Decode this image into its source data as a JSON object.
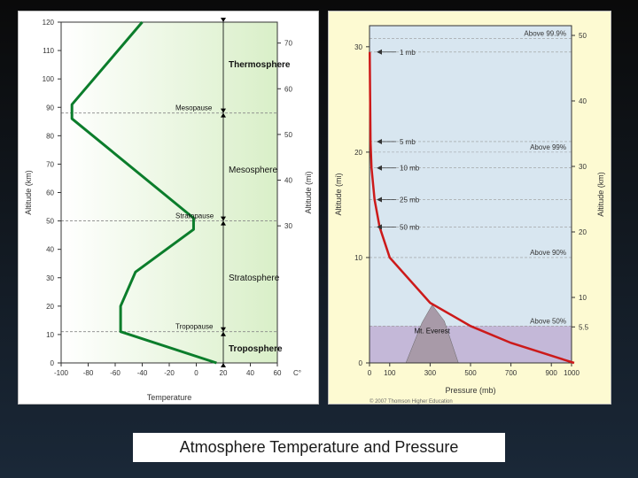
{
  "caption": "Atmosphere Temperature and Pressure",
  "left": {
    "type": "line",
    "x_axis_label": "Temperature",
    "x_unit": "C°",
    "y_axis_label_left": "Altitude (km)",
    "y_axis_label_right": "Altitude (mi)",
    "x_ticks": [
      -100,
      -80,
      -60,
      -40,
      -20,
      0,
      20,
      40,
      60
    ],
    "y_ticks_km": [
      0,
      10,
      20,
      30,
      40,
      50,
      60,
      70,
      80,
      90,
      100,
      110,
      120
    ],
    "y_ticks_mi": [
      30,
      40,
      50,
      60,
      70
    ],
    "temp_profile": [
      {
        "t": 15,
        "alt": 0
      },
      {
        "t": -56,
        "alt": 11
      },
      {
        "t": -56,
        "alt": 20
      },
      {
        "t": -45,
        "alt": 32
      },
      {
        "t": -2,
        "alt": 47
      },
      {
        "t": -2,
        "alt": 51
      },
      {
        "t": -92,
        "alt": 86
      },
      {
        "t": -92,
        "alt": 91
      },
      {
        "t": -40,
        "alt": 120
      }
    ],
    "layers": [
      {
        "name": "Troposphere",
        "y_km": 5,
        "bold": true
      },
      {
        "name": "Stratosphere",
        "y_km": 30,
        "bold": false
      },
      {
        "name": "Mesosphere",
        "y_km": 68,
        "bold": false
      },
      {
        "name": "Thermosphere",
        "y_km": 105,
        "bold": true
      }
    ],
    "pauses": [
      {
        "name": "Tropopause",
        "y_km": 11
      },
      {
        "name": "Stratopause",
        "y_km": 50
      },
      {
        "name": "Mesopause",
        "y_km": 88
      }
    ],
    "line_color": "#0b7d2b",
    "line_width": 3,
    "gradient_start": "#d9efc8",
    "gradient_end": "#ffffff",
    "background": "#ffffff",
    "grid_color": "#888888",
    "xlim": [
      -100,
      60
    ],
    "ylim_km": [
      0,
      120
    ]
  },
  "right": {
    "type": "line",
    "x_axis_label": "Pressure (mb)",
    "y_axis_label_left": "Altitude (mi)",
    "y_axis_label_right": "Altitude (km)",
    "x_ticks": [
      0,
      100,
      300,
      500,
      700,
      900,
      1000
    ],
    "y_ticks_mi": [
      0,
      10,
      20,
      30
    ],
    "y_ticks_km": [
      5.5,
      10,
      20,
      30,
      40,
      50
    ],
    "xlim": [
      0,
      1000
    ],
    "ylim_mi": [
      0,
      32
    ],
    "pressure_profile": [
      {
        "p": 1013,
        "alt_mi": 0
      },
      {
        "p": 700,
        "alt_mi": 1.9
      },
      {
        "p": 500,
        "alt_mi": 3.5
      },
      {
        "p": 300,
        "alt_mi": 5.7
      },
      {
        "p": 100,
        "alt_mi": 10
      },
      {
        "p": 50,
        "alt_mi": 12.9
      },
      {
        "p": 25,
        "alt_mi": 15.5
      },
      {
        "p": 10,
        "alt_mi": 18.5
      },
      {
        "p": 5,
        "alt_mi": 21
      },
      {
        "p": 1,
        "alt_mi": 29.5
      }
    ],
    "annotations_left": [
      {
        "label": "1 mb",
        "alt_mi": 29.5
      },
      {
        "label": "5 mb",
        "alt_mi": 21
      },
      {
        "label": "10 mb",
        "alt_mi": 18.5
      },
      {
        "label": "25 mb",
        "alt_mi": 15.5
      },
      {
        "label": "50 mb",
        "alt_mi": 12.9
      }
    ],
    "annotations_right": [
      {
        "label": "Above 99.9%",
        "alt_mi": 30.8
      },
      {
        "label": "Above 99%",
        "alt_mi": 20
      },
      {
        "label": "Above 90%",
        "alt_mi": 10
      },
      {
        "label": "Above 50%",
        "alt_mi": 3.5
      }
    ],
    "everest_label": "Mt. Everest",
    "line_color": "#cc1a1a",
    "line_width": 2.5,
    "background": "#fdfad2",
    "plot_bg_low": "#c4b8d8",
    "plot_bg_high": "#d8e6f0",
    "grid_color": "#999999",
    "copyright": "© 2007 Thomson Higher Education"
  }
}
